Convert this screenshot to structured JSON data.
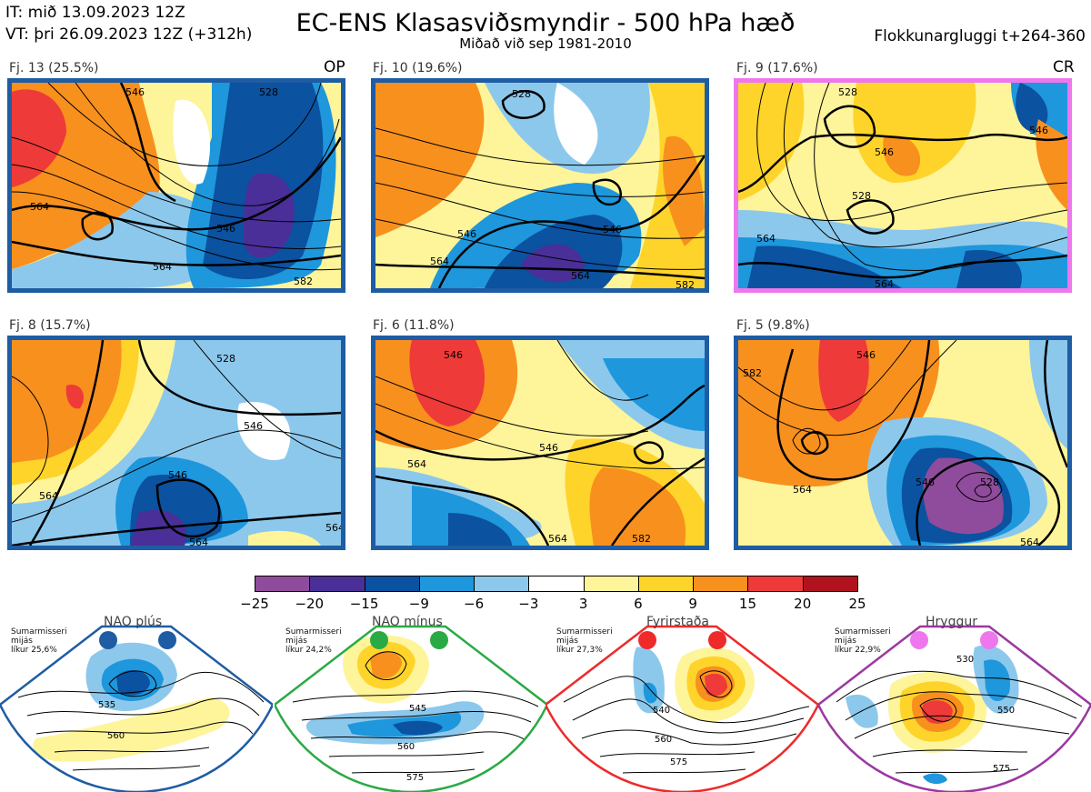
{
  "header": {
    "it_line": "IT: mið 13.09.2023 12Z",
    "vt_line": "VT: þri 26.09.2023 12Z  (+312h)",
    "title": "EC-ENS Klasasviðsmyndir - 500 hPa hæð",
    "subtitle": "Miðað við sep 1981-2010",
    "window": "Flokkunargluggi t+264-360"
  },
  "colors": {
    "bin_colors": [
      "#904c9c",
      "#4a2f98",
      "#0b52a0",
      "#1e97dc",
      "#8cc8ec",
      "#ffffff",
      "#fef49a",
      "#fed42a",
      "#f8901e",
      "#ee3a38",
      "#b0121e"
    ],
    "panel_border": "#1e5ca4",
    "cr_border": "#ee77ee",
    "nao_plus": "#1e5ca4",
    "nao_minus": "#2aaa44",
    "blocking": "#ee2a2a",
    "ridge": "#9a38a0"
  },
  "chart_data": {
    "type": "heatmap",
    "variable": "500 hPa height anomaly (dam)",
    "colorbar": {
      "ticks": [
        "−25",
        "−20",
        "−15",
        "−9",
        "−6",
        "−3",
        "3",
        "6",
        "9",
        "15",
        "20",
        "25"
      ],
      "bounds": [
        -25,
        -20,
        -15,
        -9,
        -6,
        -3,
        3,
        6,
        9,
        15,
        20,
        25
      ]
    },
    "panels": [
      {
        "label": "Fj. 13 (25.5%)",
        "cluster": 13,
        "share_pct": 25.5,
        "tag": "OP",
        "contours": [
          "564",
          "546",
          "528",
          "546",
          "564",
          "582"
        ],
        "highs": [],
        "lows": []
      },
      {
        "label": "Fj. 10 (19.6%)",
        "cluster": 10,
        "share_pct": 19.6,
        "tag": "",
        "contours": [
          "528",
          "546",
          "564",
          "546",
          "564",
          "582"
        ],
        "highs": [],
        "lows": []
      },
      {
        "label": "Fj. 9 (17.6%)",
        "cluster": 9,
        "share_pct": 17.6,
        "tag": "CR",
        "contours": [
          "528",
          "546",
          "528",
          "564",
          "546",
          "564"
        ],
        "highs": [],
        "lows": []
      },
      {
        "label": "Fj. 8 (15.7%)",
        "cluster": 8,
        "share_pct": 15.7,
        "tag": "",
        "contours": [
          "528",
          "546",
          "546",
          "564",
          "564",
          "564"
        ],
        "highs": [],
        "lows": []
      },
      {
        "label": "Fj. 6 (11.8%)",
        "cluster": 6,
        "share_pct": 11.8,
        "tag": "",
        "contours": [
          "546",
          "546",
          "564",
          "564",
          "582"
        ],
        "highs": [],
        "lows": []
      },
      {
        "label": "Fj. 5 (9.8%)",
        "cluster": 5,
        "share_pct": 9.8,
        "tag": "",
        "contours": [
          "582",
          "546",
          "564",
          "546",
          "528",
          "564"
        ],
        "highs": [],
        "lows": []
      }
    ],
    "regimes": [
      {
        "name": "NAO plús",
        "season": "Sumarmisseri",
        "mean": "mijás",
        "prob_label": "líkur 25,6%",
        "prob_pct": 25.6,
        "contours": [
          "535",
          "560"
        ]
      },
      {
        "name": "NAO mínus",
        "season": "Sumarmisseri",
        "mean": "mijás",
        "prob_label": "líkur 24,2%",
        "prob_pct": 24.2,
        "contours": [
          "545",
          "560",
          "575"
        ]
      },
      {
        "name": "Fyrirstaða",
        "season": "Sumarmisseri",
        "mean": "mijás",
        "prob_label": "líkur 27,3%",
        "prob_pct": 27.3,
        "contours": [
          "540",
          "560",
          "575"
        ]
      },
      {
        "name": "Hryggur",
        "season": "Sumarmisseri",
        "mean": "mijás",
        "prob_label": "líkur 22,9%",
        "prob_pct": 22.9,
        "contours": [
          "530",
          "550",
          "575"
        ]
      }
    ]
  }
}
